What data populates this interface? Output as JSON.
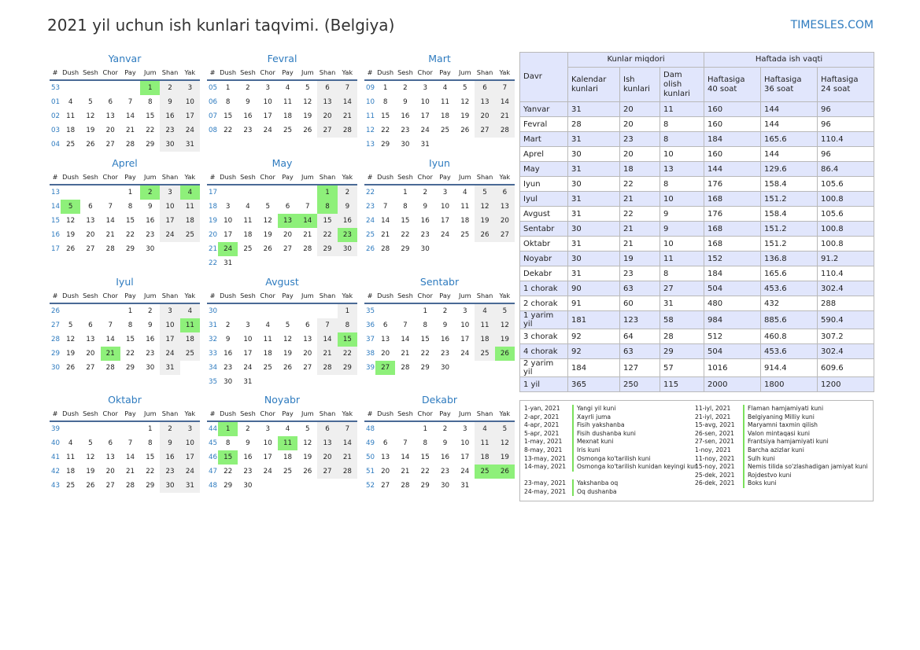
{
  "page": {
    "title": "2021 yil uchun ish kunlari taqvimi. (Belgiya)",
    "brand": "TIMESLES.COM",
    "weekday_headers": [
      "#",
      "Dush",
      "Sesh",
      "Chor",
      "Pay",
      "Jum",
      "Shan",
      "Yak"
    ]
  },
  "months": [
    {
      "name": "Yanvar",
      "weeks": [
        {
          "w": "53",
          "d": [
            "",
            "",
            "",
            "",
            "1",
            "2",
            "3"
          ]
        },
        {
          "w": "01",
          "d": [
            "4",
            "5",
            "6",
            "7",
            "8",
            "9",
            "10"
          ]
        },
        {
          "w": "02",
          "d": [
            "11",
            "12",
            "13",
            "14",
            "15",
            "16",
            "17"
          ]
        },
        {
          "w": "03",
          "d": [
            "18",
            "19",
            "20",
            "21",
            "22",
            "23",
            "24"
          ]
        },
        {
          "w": "04",
          "d": [
            "25",
            "26",
            "27",
            "28",
            "29",
            "30",
            "31"
          ]
        }
      ],
      "holidays": [
        "1"
      ]
    },
    {
      "name": "Fevral",
      "weeks": [
        {
          "w": "05",
          "d": [
            "1",
            "2",
            "3",
            "4",
            "5",
            "6",
            "7"
          ]
        },
        {
          "w": "06",
          "d": [
            "8",
            "9",
            "10",
            "11",
            "12",
            "13",
            "14"
          ]
        },
        {
          "w": "07",
          "d": [
            "15",
            "16",
            "17",
            "18",
            "19",
            "20",
            "21"
          ]
        },
        {
          "w": "08",
          "d": [
            "22",
            "23",
            "24",
            "25",
            "26",
            "27",
            "28"
          ]
        }
      ],
      "holidays": []
    },
    {
      "name": "Mart",
      "weeks": [
        {
          "w": "09",
          "d": [
            "1",
            "2",
            "3",
            "4",
            "5",
            "6",
            "7"
          ]
        },
        {
          "w": "10",
          "d": [
            "8",
            "9",
            "10",
            "11",
            "12",
            "13",
            "14"
          ]
        },
        {
          "w": "11",
          "d": [
            "15",
            "16",
            "17",
            "18",
            "19",
            "20",
            "21"
          ]
        },
        {
          "w": "12",
          "d": [
            "22",
            "23",
            "24",
            "25",
            "26",
            "27",
            "28"
          ]
        },
        {
          "w": "13",
          "d": [
            "29",
            "30",
            "31",
            "",
            "",
            "",
            ""
          ]
        }
      ],
      "holidays": []
    },
    {
      "name": "Aprel",
      "weeks": [
        {
          "w": "13",
          "d": [
            "",
            "",
            "",
            "1",
            "2",
            "3",
            "4"
          ]
        },
        {
          "w": "14",
          "d": [
            "5",
            "6",
            "7",
            "8",
            "9",
            "10",
            "11"
          ]
        },
        {
          "w": "15",
          "d": [
            "12",
            "13",
            "14",
            "15",
            "16",
            "17",
            "18"
          ]
        },
        {
          "w": "16",
          "d": [
            "19",
            "20",
            "21",
            "22",
            "23",
            "24",
            "25"
          ]
        },
        {
          "w": "17",
          "d": [
            "26",
            "27",
            "28",
            "29",
            "30",
            "",
            ""
          ]
        }
      ],
      "holidays": [
        "2",
        "4",
        "5"
      ]
    },
    {
      "name": "May",
      "weeks": [
        {
          "w": "17",
          "d": [
            "",
            "",
            "",
            "",
            "",
            "1",
            "2"
          ]
        },
        {
          "w": "18",
          "d": [
            "3",
            "4",
            "5",
            "6",
            "7",
            "8",
            "9"
          ]
        },
        {
          "w": "19",
          "d": [
            "10",
            "11",
            "12",
            "13",
            "14",
            "15",
            "16"
          ]
        },
        {
          "w": "20",
          "d": [
            "17",
            "18",
            "19",
            "20",
            "21",
            "22",
            "23"
          ]
        },
        {
          "w": "21",
          "d": [
            "24",
            "25",
            "26",
            "27",
            "28",
            "29",
            "30"
          ]
        },
        {
          "w": "22",
          "d": [
            "31",
            "",
            "",
            "",
            "",
            "",
            ""
          ]
        }
      ],
      "holidays": [
        "1",
        "8",
        "13",
        "14",
        "23",
        "24"
      ]
    },
    {
      "name": "Iyun",
      "weeks": [
        {
          "w": "22",
          "d": [
            "",
            "1",
            "2",
            "3",
            "4",
            "5",
            "6"
          ]
        },
        {
          "w": "23",
          "d": [
            "7",
            "8",
            "9",
            "10",
            "11",
            "12",
            "13"
          ]
        },
        {
          "w": "24",
          "d": [
            "14",
            "15",
            "16",
            "17",
            "18",
            "19",
            "20"
          ]
        },
        {
          "w": "25",
          "d": [
            "21",
            "22",
            "23",
            "24",
            "25",
            "26",
            "27"
          ]
        },
        {
          "w": "26",
          "d": [
            "28",
            "29",
            "30",
            "",
            "",
            "",
            ""
          ]
        }
      ],
      "holidays": []
    },
    {
      "name": "Iyul",
      "weeks": [
        {
          "w": "26",
          "d": [
            "",
            "",
            "",
            "1",
            "2",
            "3",
            "4"
          ]
        },
        {
          "w": "27",
          "d": [
            "5",
            "6",
            "7",
            "8",
            "9",
            "10",
            "11"
          ]
        },
        {
          "w": "28",
          "d": [
            "12",
            "13",
            "14",
            "15",
            "16",
            "17",
            "18"
          ]
        },
        {
          "w": "29",
          "d": [
            "19",
            "20",
            "21",
            "22",
            "23",
            "24",
            "25"
          ]
        },
        {
          "w": "30",
          "d": [
            "26",
            "27",
            "28",
            "29",
            "30",
            "31",
            ""
          ]
        }
      ],
      "holidays": [
        "11",
        "21"
      ]
    },
    {
      "name": "Avgust",
      "weeks": [
        {
          "w": "30",
          "d": [
            "",
            "",
            "",
            "",
            "",
            "",
            "1"
          ]
        },
        {
          "w": "31",
          "d": [
            "2",
            "3",
            "4",
            "5",
            "6",
            "7",
            "8"
          ]
        },
        {
          "w": "32",
          "d": [
            "9",
            "10",
            "11",
            "12",
            "13",
            "14",
            "15"
          ]
        },
        {
          "w": "33",
          "d": [
            "16",
            "17",
            "18",
            "19",
            "20",
            "21",
            "22"
          ]
        },
        {
          "w": "34",
          "d": [
            "23",
            "24",
            "25",
            "26",
            "27",
            "28",
            "29"
          ]
        },
        {
          "w": "35",
          "d": [
            "30",
            "31",
            "",
            "",
            "",
            "",
            ""
          ]
        }
      ],
      "holidays": [
        "15"
      ]
    },
    {
      "name": "Sentabr",
      "weeks": [
        {
          "w": "35",
          "d": [
            "",
            "",
            "1",
            "2",
            "3",
            "4",
            "5"
          ]
        },
        {
          "w": "36",
          "d": [
            "6",
            "7",
            "8",
            "9",
            "10",
            "11",
            "12"
          ]
        },
        {
          "w": "37",
          "d": [
            "13",
            "14",
            "15",
            "16",
            "17",
            "18",
            "19"
          ]
        },
        {
          "w": "38",
          "d": [
            "20",
            "21",
            "22",
            "23",
            "24",
            "25",
            "26"
          ]
        },
        {
          "w": "39",
          "d": [
            "27",
            "28",
            "29",
            "30",
            "",
            "",
            ""
          ]
        }
      ],
      "holidays": [
        "26",
        "27"
      ]
    },
    {
      "name": "Oktabr",
      "weeks": [
        {
          "w": "39",
          "d": [
            "",
            "",
            "",
            "",
            "1",
            "2",
            "3"
          ]
        },
        {
          "w": "40",
          "d": [
            "4",
            "5",
            "6",
            "7",
            "8",
            "9",
            "10"
          ]
        },
        {
          "w": "41",
          "d": [
            "11",
            "12",
            "13",
            "14",
            "15",
            "16",
            "17"
          ]
        },
        {
          "w": "42",
          "d": [
            "18",
            "19",
            "20",
            "21",
            "22",
            "23",
            "24"
          ]
        },
        {
          "w": "43",
          "d": [
            "25",
            "26",
            "27",
            "28",
            "29",
            "30",
            "31"
          ]
        }
      ],
      "holidays": []
    },
    {
      "name": "Noyabr",
      "weeks": [
        {
          "w": "44",
          "d": [
            "1",
            "2",
            "3",
            "4",
            "5",
            "6",
            "7"
          ]
        },
        {
          "w": "45",
          "d": [
            "8",
            "9",
            "10",
            "11",
            "12",
            "13",
            "14"
          ]
        },
        {
          "w": "46",
          "d": [
            "15",
            "16",
            "17",
            "18",
            "19",
            "20",
            "21"
          ]
        },
        {
          "w": "47",
          "d": [
            "22",
            "23",
            "24",
            "25",
            "26",
            "27",
            "28"
          ]
        },
        {
          "w": "48",
          "d": [
            "29",
            "30",
            "",
            "",
            "",
            "",
            ""
          ]
        }
      ],
      "holidays": [
        "1",
        "11",
        "15"
      ]
    },
    {
      "name": "Dekabr",
      "weeks": [
        {
          "w": "48",
          "d": [
            "",
            "",
            "1",
            "2",
            "3",
            "4",
            "5"
          ]
        },
        {
          "w": "49",
          "d": [
            "6",
            "7",
            "8",
            "9",
            "10",
            "11",
            "12"
          ]
        },
        {
          "w": "50",
          "d": [
            "13",
            "14",
            "15",
            "16",
            "17",
            "18",
            "19"
          ]
        },
        {
          "w": "51",
          "d": [
            "20",
            "21",
            "22",
            "23",
            "24",
            "25",
            "26"
          ]
        },
        {
          "w": "52",
          "d": [
            "27",
            "28",
            "29",
            "30",
            "31",
            "",
            ""
          ]
        }
      ],
      "holidays": [
        "25",
        "26"
      ]
    }
  ],
  "summary": {
    "period_header": "Davr",
    "group1_header": "Kunlar miqdori",
    "group2_header": "Haftada ish vaqti",
    "columns": [
      "Kalendar kunlari",
      "Ish kunlari",
      "Dam olish kunlari",
      "Haftasiga 40 soat",
      "Haftasiga 36 soat",
      "Haftasiga 24 soat"
    ],
    "rows": [
      [
        "Yanvar",
        "31",
        "20",
        "11",
        "160",
        "144",
        "96"
      ],
      [
        "Fevral",
        "28",
        "20",
        "8",
        "160",
        "144",
        "96"
      ],
      [
        "Mart",
        "31",
        "23",
        "8",
        "184",
        "165.6",
        "110.4"
      ],
      [
        "Aprel",
        "30",
        "20",
        "10",
        "160",
        "144",
        "96"
      ],
      [
        "May",
        "31",
        "18",
        "13",
        "144",
        "129.6",
        "86.4"
      ],
      [
        "Iyun",
        "30",
        "22",
        "8",
        "176",
        "158.4",
        "105.6"
      ],
      [
        "Iyul",
        "31",
        "21",
        "10",
        "168",
        "151.2",
        "100.8"
      ],
      [
        "Avgust",
        "31",
        "22",
        "9",
        "176",
        "158.4",
        "105.6"
      ],
      [
        "Sentabr",
        "30",
        "21",
        "9",
        "168",
        "151.2",
        "100.8"
      ],
      [
        "Oktabr",
        "31",
        "21",
        "10",
        "168",
        "151.2",
        "100.8"
      ],
      [
        "Noyabr",
        "30",
        "19",
        "11",
        "152",
        "136.8",
        "91.2"
      ],
      [
        "Dekabr",
        "31",
        "23",
        "8",
        "184",
        "165.6",
        "110.4"
      ],
      [
        "1 chorak",
        "90",
        "63",
        "27",
        "504",
        "453.6",
        "302.4"
      ],
      [
        "2 chorak",
        "91",
        "60",
        "31",
        "480",
        "432",
        "288"
      ],
      [
        "1 yarim yil",
        "181",
        "123",
        "58",
        "984",
        "885.6",
        "590.4"
      ],
      [
        "3 chorak",
        "92",
        "64",
        "28",
        "512",
        "460.8",
        "307.2"
      ],
      [
        "4 chorak",
        "92",
        "63",
        "29",
        "504",
        "453.6",
        "302.4"
      ],
      [
        "2 yarim yil",
        "184",
        "127",
        "57",
        "1016",
        "914.4",
        "609.6"
      ],
      [
        "1 yil",
        "365",
        "250",
        "115",
        "2000",
        "1800",
        "1200"
      ]
    ]
  },
  "holidays_list": {
    "left": [
      {
        "date": "1-yan, 2021",
        "name": "Yangi yil kuni"
      },
      {
        "date": "2-apr, 2021",
        "name": "Xayrli juma"
      },
      {
        "date": "4-apr, 2021",
        "name": "Fisih yakshanba"
      },
      {
        "date": "5-apr, 2021",
        "name": "Fisih dushanba kuni"
      },
      {
        "date": "1-may, 2021",
        "name": "Mexnat kuni"
      },
      {
        "date": "8-may, 2021",
        "name": "Iris kuni"
      },
      {
        "date": "13-may, 2021",
        "name": "Osmonga ko'tarilish kuni"
      },
      {
        "date": "14-may, 2021",
        "name": "Osmonga ko'tarilish kunidan keyingi kun"
      },
      {
        "date": "23-may, 2021",
        "name": "Yakshanba oq"
      },
      {
        "date": "24-may, 2021",
        "name": "Oq dushanba"
      }
    ],
    "right": [
      {
        "date": "11-iyl, 2021",
        "name": "Flaman hamjamiyati kuni"
      },
      {
        "date": "21-iyl, 2021",
        "name": "Belgiyaning Milliy kuni"
      },
      {
        "date": "15-avg, 2021",
        "name": "Maryamni taxmin qilish"
      },
      {
        "date": "26-sen, 2021",
        "name": "Valon mintaqasi kuni"
      },
      {
        "date": "27-sen, 2021",
        "name": "Frantsiya hamjamiyati kuni"
      },
      {
        "date": "1-noy, 2021",
        "name": "Barcha azizlar kuni"
      },
      {
        "date": "11-noy, 2021",
        "name": "Sulh kuni"
      },
      {
        "date": "15-noy, 2021",
        "name": "Nemis tilida so'zlashadigan jamiyat kuni"
      },
      {
        "date": "25-dek, 2021",
        "name": "Rojdestvo kuni"
      },
      {
        "date": "26-dek, 2021",
        "name": "Boks kuni"
      }
    ]
  },
  "colors": {
    "accent": "#2e7bbf",
    "holiday": "#8ef07a",
    "weekend": "#efefef",
    "header_bg": "#e1e6fc"
  }
}
